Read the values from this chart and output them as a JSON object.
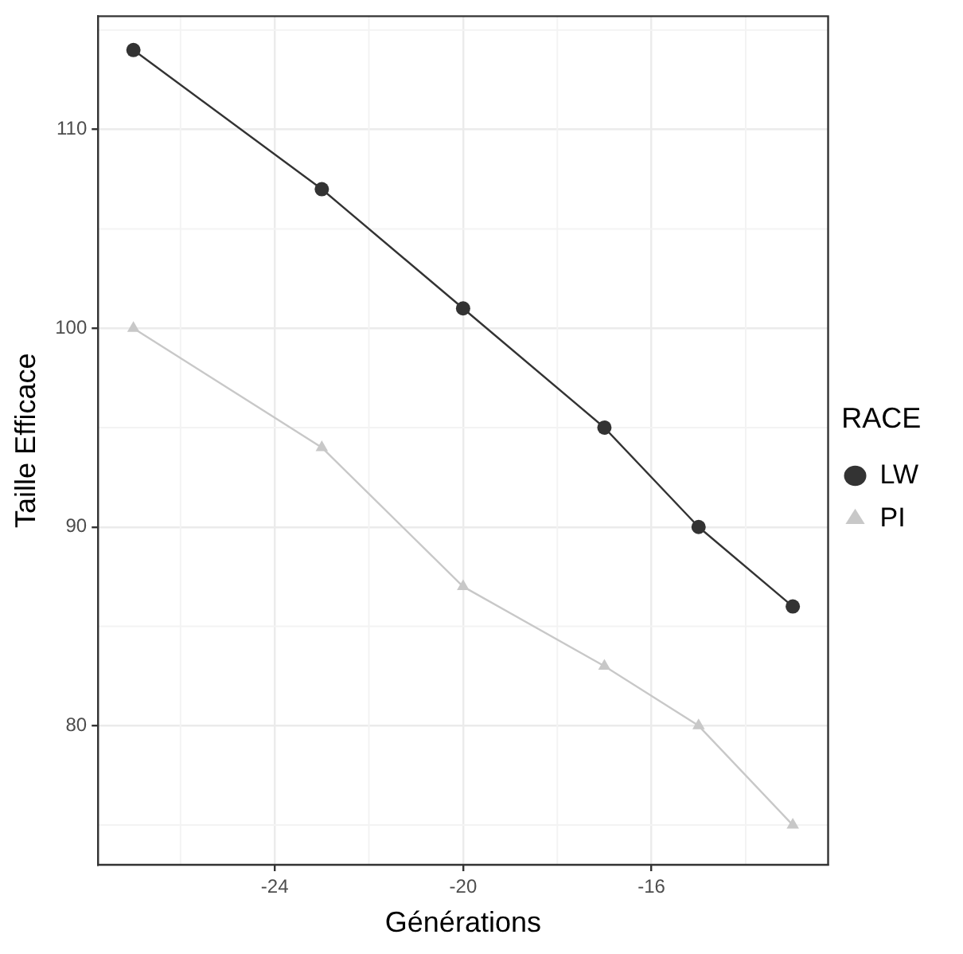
{
  "chart_data": {
    "type": "line",
    "xlabel": "Générations",
    "ylabel": "Taille Efficace",
    "legend_title": "RACE",
    "x": [
      -27,
      -23,
      -20,
      -17,
      -15,
      -13
    ],
    "series": [
      {
        "name": "LW",
        "color": "#333333",
        "marker": "circle",
        "values": [
          114,
          107,
          101,
          95,
          90,
          86
        ]
      },
      {
        "name": "PI",
        "color": "#c8c8c8",
        "marker": "triangle",
        "values": [
          100,
          94,
          87,
          83,
          80,
          75
        ]
      }
    ],
    "xlim": [
      -27.75,
      -12.25
    ],
    "xticks": [
      -24,
      -20,
      -16
    ],
    "ylim": [
      73,
      115.7
    ],
    "yticks": [
      80,
      90,
      100,
      110
    ],
    "grid": true,
    "legend": "right",
    "line_style": "solid"
  }
}
